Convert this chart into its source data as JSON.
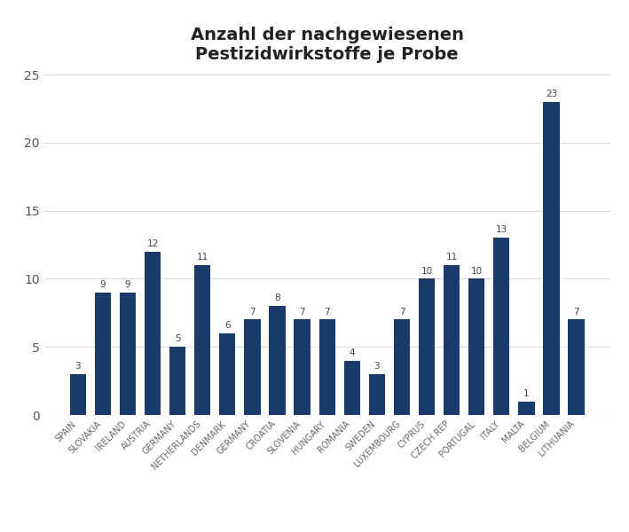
{
  "title": "Anzahl der nachgewiesenen\nPestizidwirkstoffe je Probe",
  "categories": [
    "SPAIN",
    "SLOVAKIA",
    "IRELAND",
    "AUSTRIA",
    "GERMANY",
    "NETHERLANDS",
    "DENMARK",
    "GERMANY",
    "CROATIA",
    "SLOVENIA",
    "HUNGARY",
    "ROMANIA",
    "SWEDEN",
    "LUXEMBOURG",
    "CYPRUS",
    "CZECH REP",
    "PORTUGAL",
    "ITALY",
    "MALTA",
    "BELGIUM",
    "LITHUANIA"
  ],
  "values": [
    3,
    9,
    9,
    12,
    5,
    11,
    6,
    7,
    8,
    7,
    7,
    4,
    3,
    7,
    10,
    11,
    10,
    13,
    1,
    23,
    7
  ],
  "bar_color": "#1a3a6b",
  "ylim": [
    0,
    25
  ],
  "yticks": [
    0,
    5,
    10,
    15,
    20,
    25
  ],
  "title_fontsize": 14,
  "label_fontsize": 7,
  "value_fontsize": 7.5,
  "background_color": "#ffffff",
  "grid_color": "#dddddd"
}
